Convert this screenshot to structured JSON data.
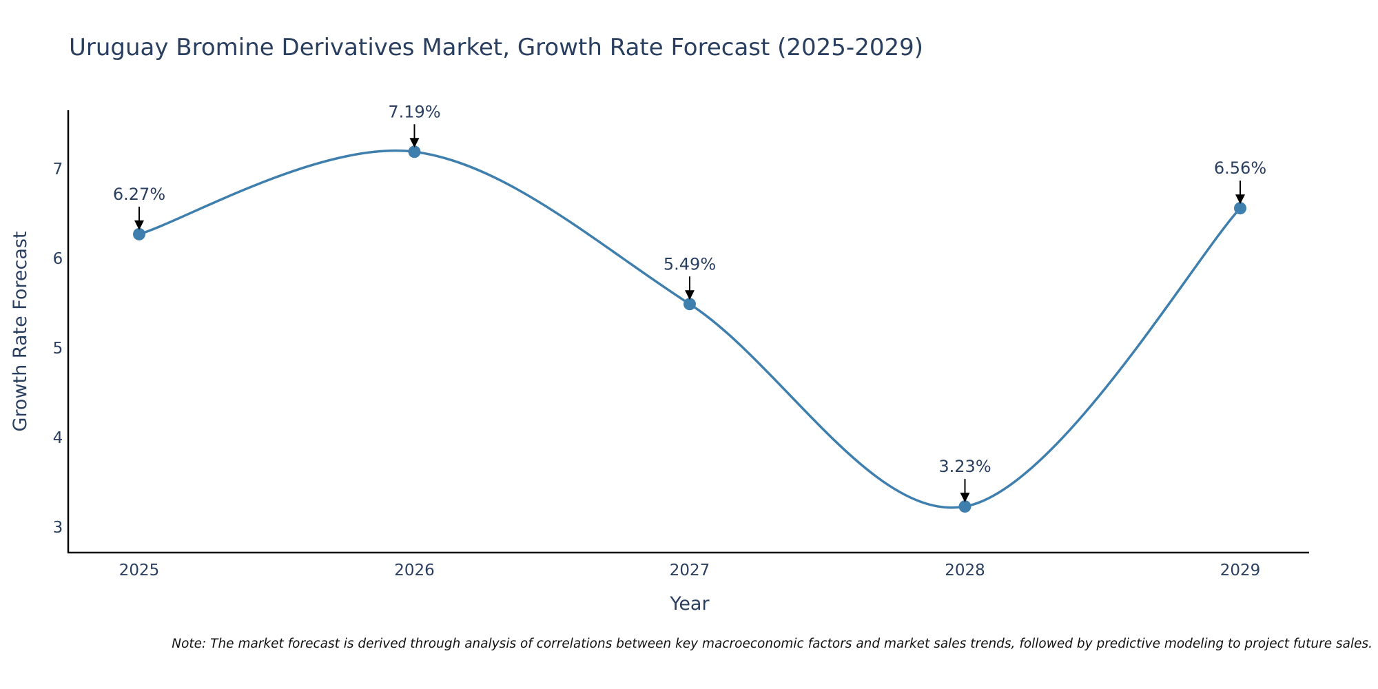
{
  "chart_data": {
    "type": "line",
    "title": "Uruguay Bromine Derivatives Market, Growth Rate Forecast (2025-2029)",
    "xlabel": "Year",
    "ylabel": "Growth Rate Forecast",
    "categories": [
      "2025",
      "2026",
      "2027",
      "2028",
      "2029"
    ],
    "series": [
      {
        "name": "Growth Rate Forecast",
        "values": [
          6.27,
          7.19,
          5.49,
          3.23,
          6.56
        ]
      }
    ],
    "data_labels": [
      "6.27%",
      "7.19%",
      "5.49%",
      "3.23%",
      "6.56%"
    ],
    "yticks": [
      3,
      4,
      5,
      6,
      7
    ],
    "ylim": [
      2.7,
      7.66
    ],
    "grid": false,
    "line_shape": "spline",
    "note": "Note: The market forecast is derived through analysis of correlations between key macroeconomic factors and market sales trends, followed by predictive modeling to project future sales."
  },
  "colors": {
    "line": "#3f7fae",
    "marker": "#3f7fae",
    "text": "#2a3f5f",
    "axis": "#000000",
    "arrow": "#000000"
  }
}
